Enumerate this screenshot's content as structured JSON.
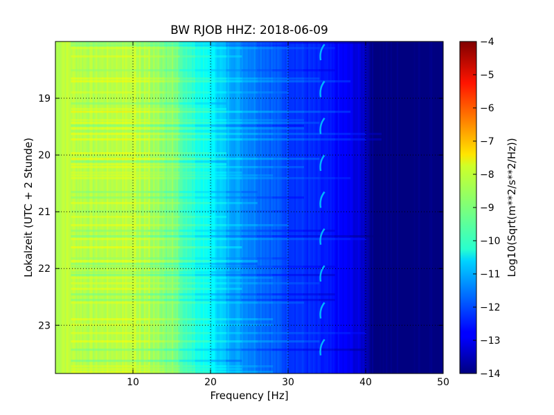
{
  "chart_data": {
    "type": "heatmap",
    "title": "BW RJOB HHZ: 2018-06-09",
    "xlabel": "Frequency [Hz]",
    "ylabel": "Lokalzeit (UTC + 2 Stunde)",
    "xlim": [
      0,
      50
    ],
    "ylim": [
      18.0,
      23.85
    ],
    "x_ticks": [
      10,
      20,
      30,
      40,
      50
    ],
    "y_ticks": [
      19,
      20,
      21,
      22,
      23
    ],
    "y_inverted": true,
    "grid": true,
    "colormap": "jet",
    "colorbar": {
      "label": "Log10(Sqrt(m**2/s**2/Hz))",
      "range": [
        -14,
        -4
      ],
      "ticks": [
        -14,
        -13,
        -12,
        -11,
        -10,
        -9,
        -8,
        -7,
        -6,
        -5,
        -4
      ]
    },
    "spectral_profile": {
      "frequency_hz": [
        0,
        1,
        2,
        5,
        8,
        10,
        13,
        15,
        17,
        20,
        22,
        25,
        28,
        30,
        33,
        35,
        38,
        40,
        41,
        50
      ],
      "log10_amplitude": [
        -8.6,
        -8.3,
        -8.4,
        -8.5,
        -8.4,
        -8.4,
        -8.8,
        -9.1,
        -9.7,
        -10.3,
        -10.9,
        -11.4,
        -11.8,
        -12.1,
        -12.4,
        -12.6,
        -12.9,
        -13.3,
        -14.0,
        -14.0
      ]
    }
  }
}
